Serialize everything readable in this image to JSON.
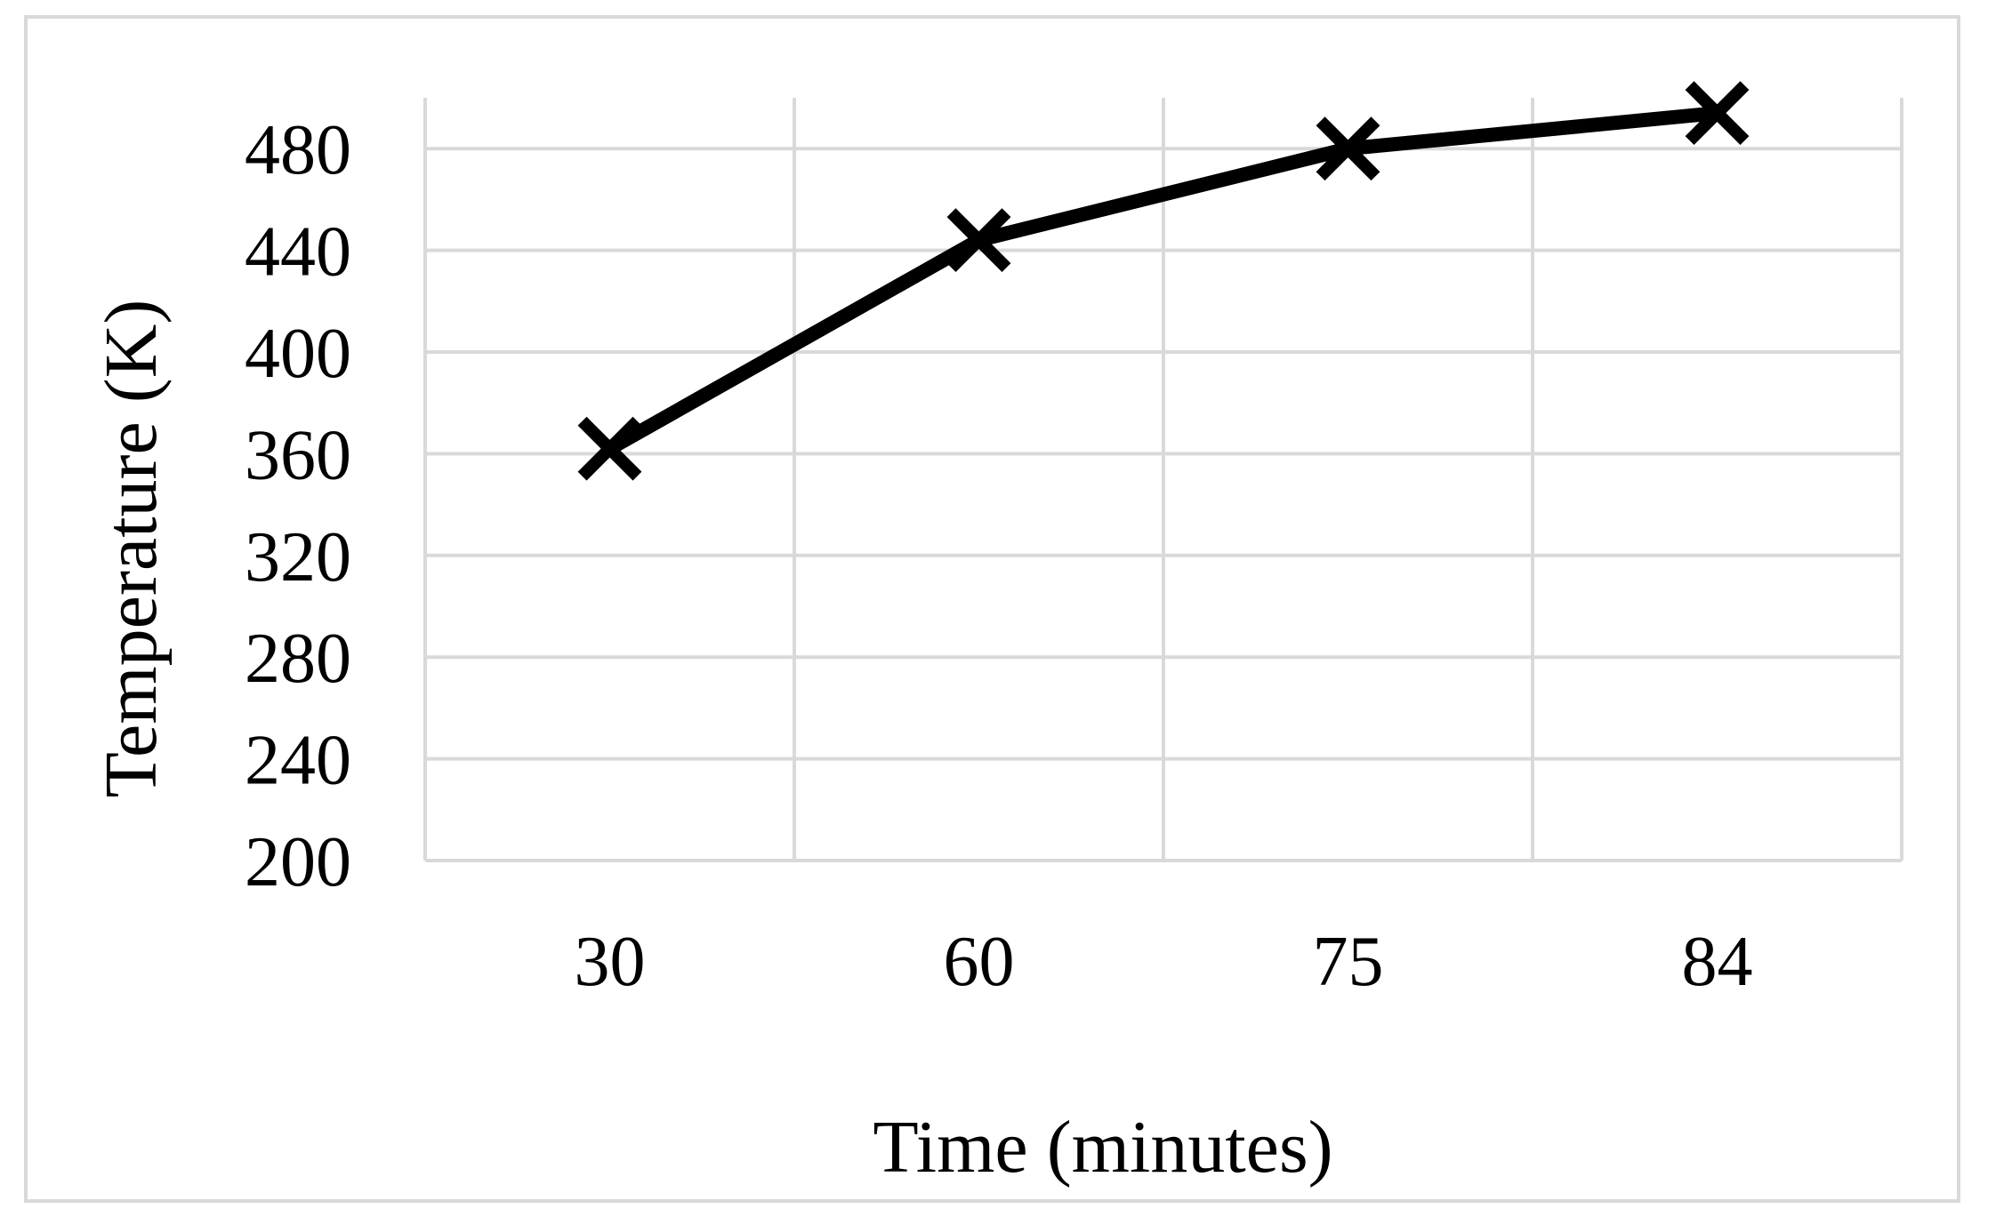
{
  "chart_data": {
    "type": "line",
    "title": "",
    "xlabel": "Time (minutes)",
    "ylabel": "Temperature (K)",
    "categories": [
      "30",
      "60",
      "75",
      "84"
    ],
    "series": [
      {
        "values": [
          362,
          444,
          480,
          494
        ]
      }
    ],
    "yticks": [
      "200",
      "240",
      "280",
      "320",
      "360",
      "400",
      "440",
      "480"
    ],
    "ylim": [
      200,
      500
    ],
    "grid": true,
    "marker": "x",
    "colors": {
      "line": "#000000",
      "grid": "#d9d9d9",
      "frame": "#d9d9d9"
    }
  }
}
